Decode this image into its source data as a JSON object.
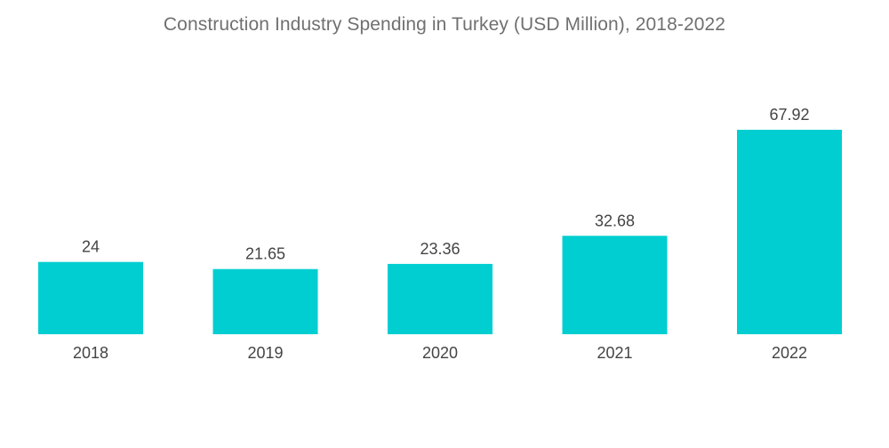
{
  "chart_data": {
    "type": "bar",
    "title": "Construction Industry Spending in Turkey (USD Million), 2018-2022",
    "categories": [
      "2018",
      "2019",
      "2020",
      "2021",
      "2022"
    ],
    "values": [
      24,
      21.65,
      23.36,
      32.68,
      67.92
    ],
    "value_labels": [
      "24",
      "21.65",
      "23.36",
      "32.68",
      "67.92"
    ],
    "xlabel": "",
    "ylabel": "",
    "ylim": [
      0,
      67.92
    ],
    "grid": false,
    "legend": "none",
    "bar_color": "#00CED1"
  }
}
